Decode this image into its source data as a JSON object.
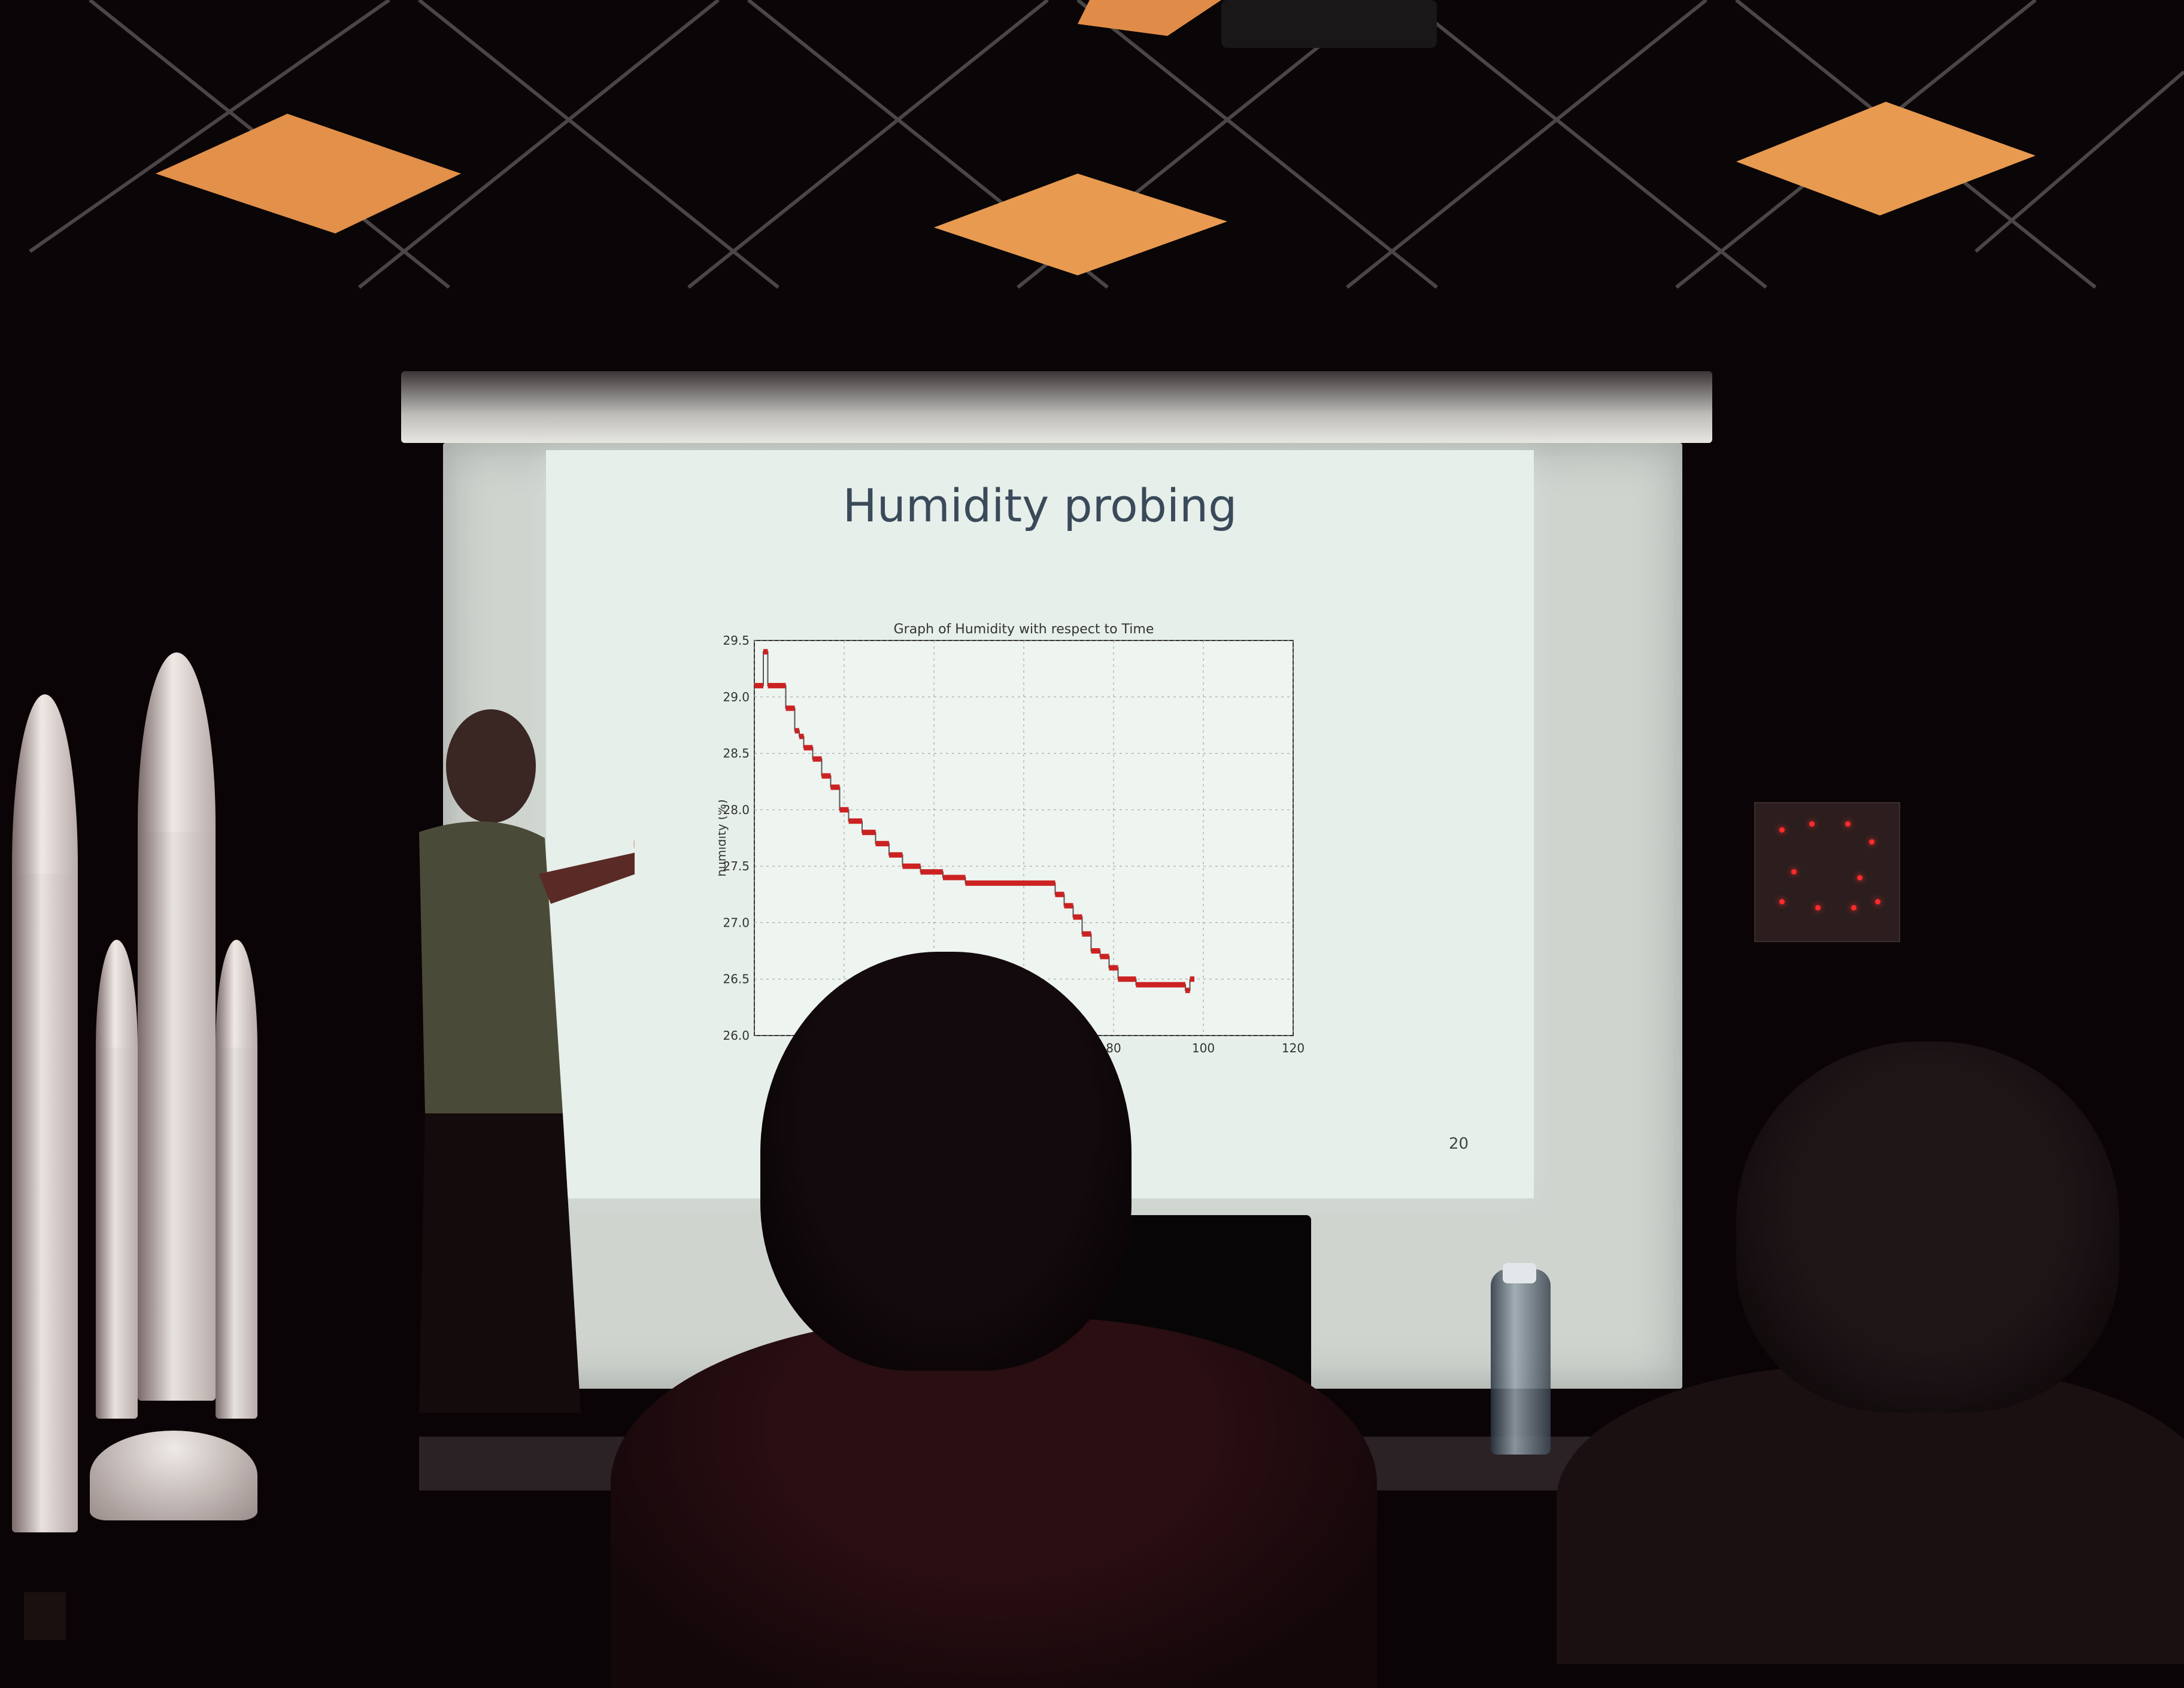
{
  "slide": {
    "title": "Humidity probing",
    "slide_number": "20"
  },
  "chart_data": {
    "type": "line",
    "title": "Graph of Humidity with respect to Time",
    "xlabel": "",
    "ylabel": "humidity (%)",
    "xlim": [
      0,
      120
    ],
    "ylim": [
      26.0,
      29.5
    ],
    "x_ticks_visible": [
      "80",
      "100",
      "120"
    ],
    "y_ticks": [
      "29.5",
      "29.0",
      "28.5",
      "28.0",
      "27.5",
      "27.0",
      "26.5",
      "26.0"
    ],
    "grid": true,
    "series": [
      {
        "color": "#cc2222",
        "x": [
          0,
          2,
          3,
          5,
          7,
          9,
          10,
          11,
          13,
          15,
          17,
          19,
          21,
          24,
          27,
          30,
          33,
          37,
          42,
          47,
          53,
          60,
          67,
          69,
          71,
          73,
          75,
          77,
          79,
          81,
          85,
          89,
          93,
          96,
          97
        ],
        "y": [
          29.1,
          29.4,
          29.1,
          29.1,
          28.9,
          28.7,
          28.65,
          28.55,
          28.45,
          28.3,
          28.2,
          28.0,
          27.9,
          27.8,
          27.7,
          27.6,
          27.5,
          27.45,
          27.4,
          27.35,
          27.35,
          27.35,
          27.25,
          27.15,
          27.05,
          26.9,
          26.75,
          26.7,
          26.6,
          26.5,
          26.45,
          26.45,
          26.45,
          26.4,
          26.5
        ]
      }
    ]
  },
  "room": {
    "colors": {
      "slide_background": "#e6efe9",
      "ceiling_light": "#f0a050",
      "led": "#ff2a2a"
    }
  }
}
